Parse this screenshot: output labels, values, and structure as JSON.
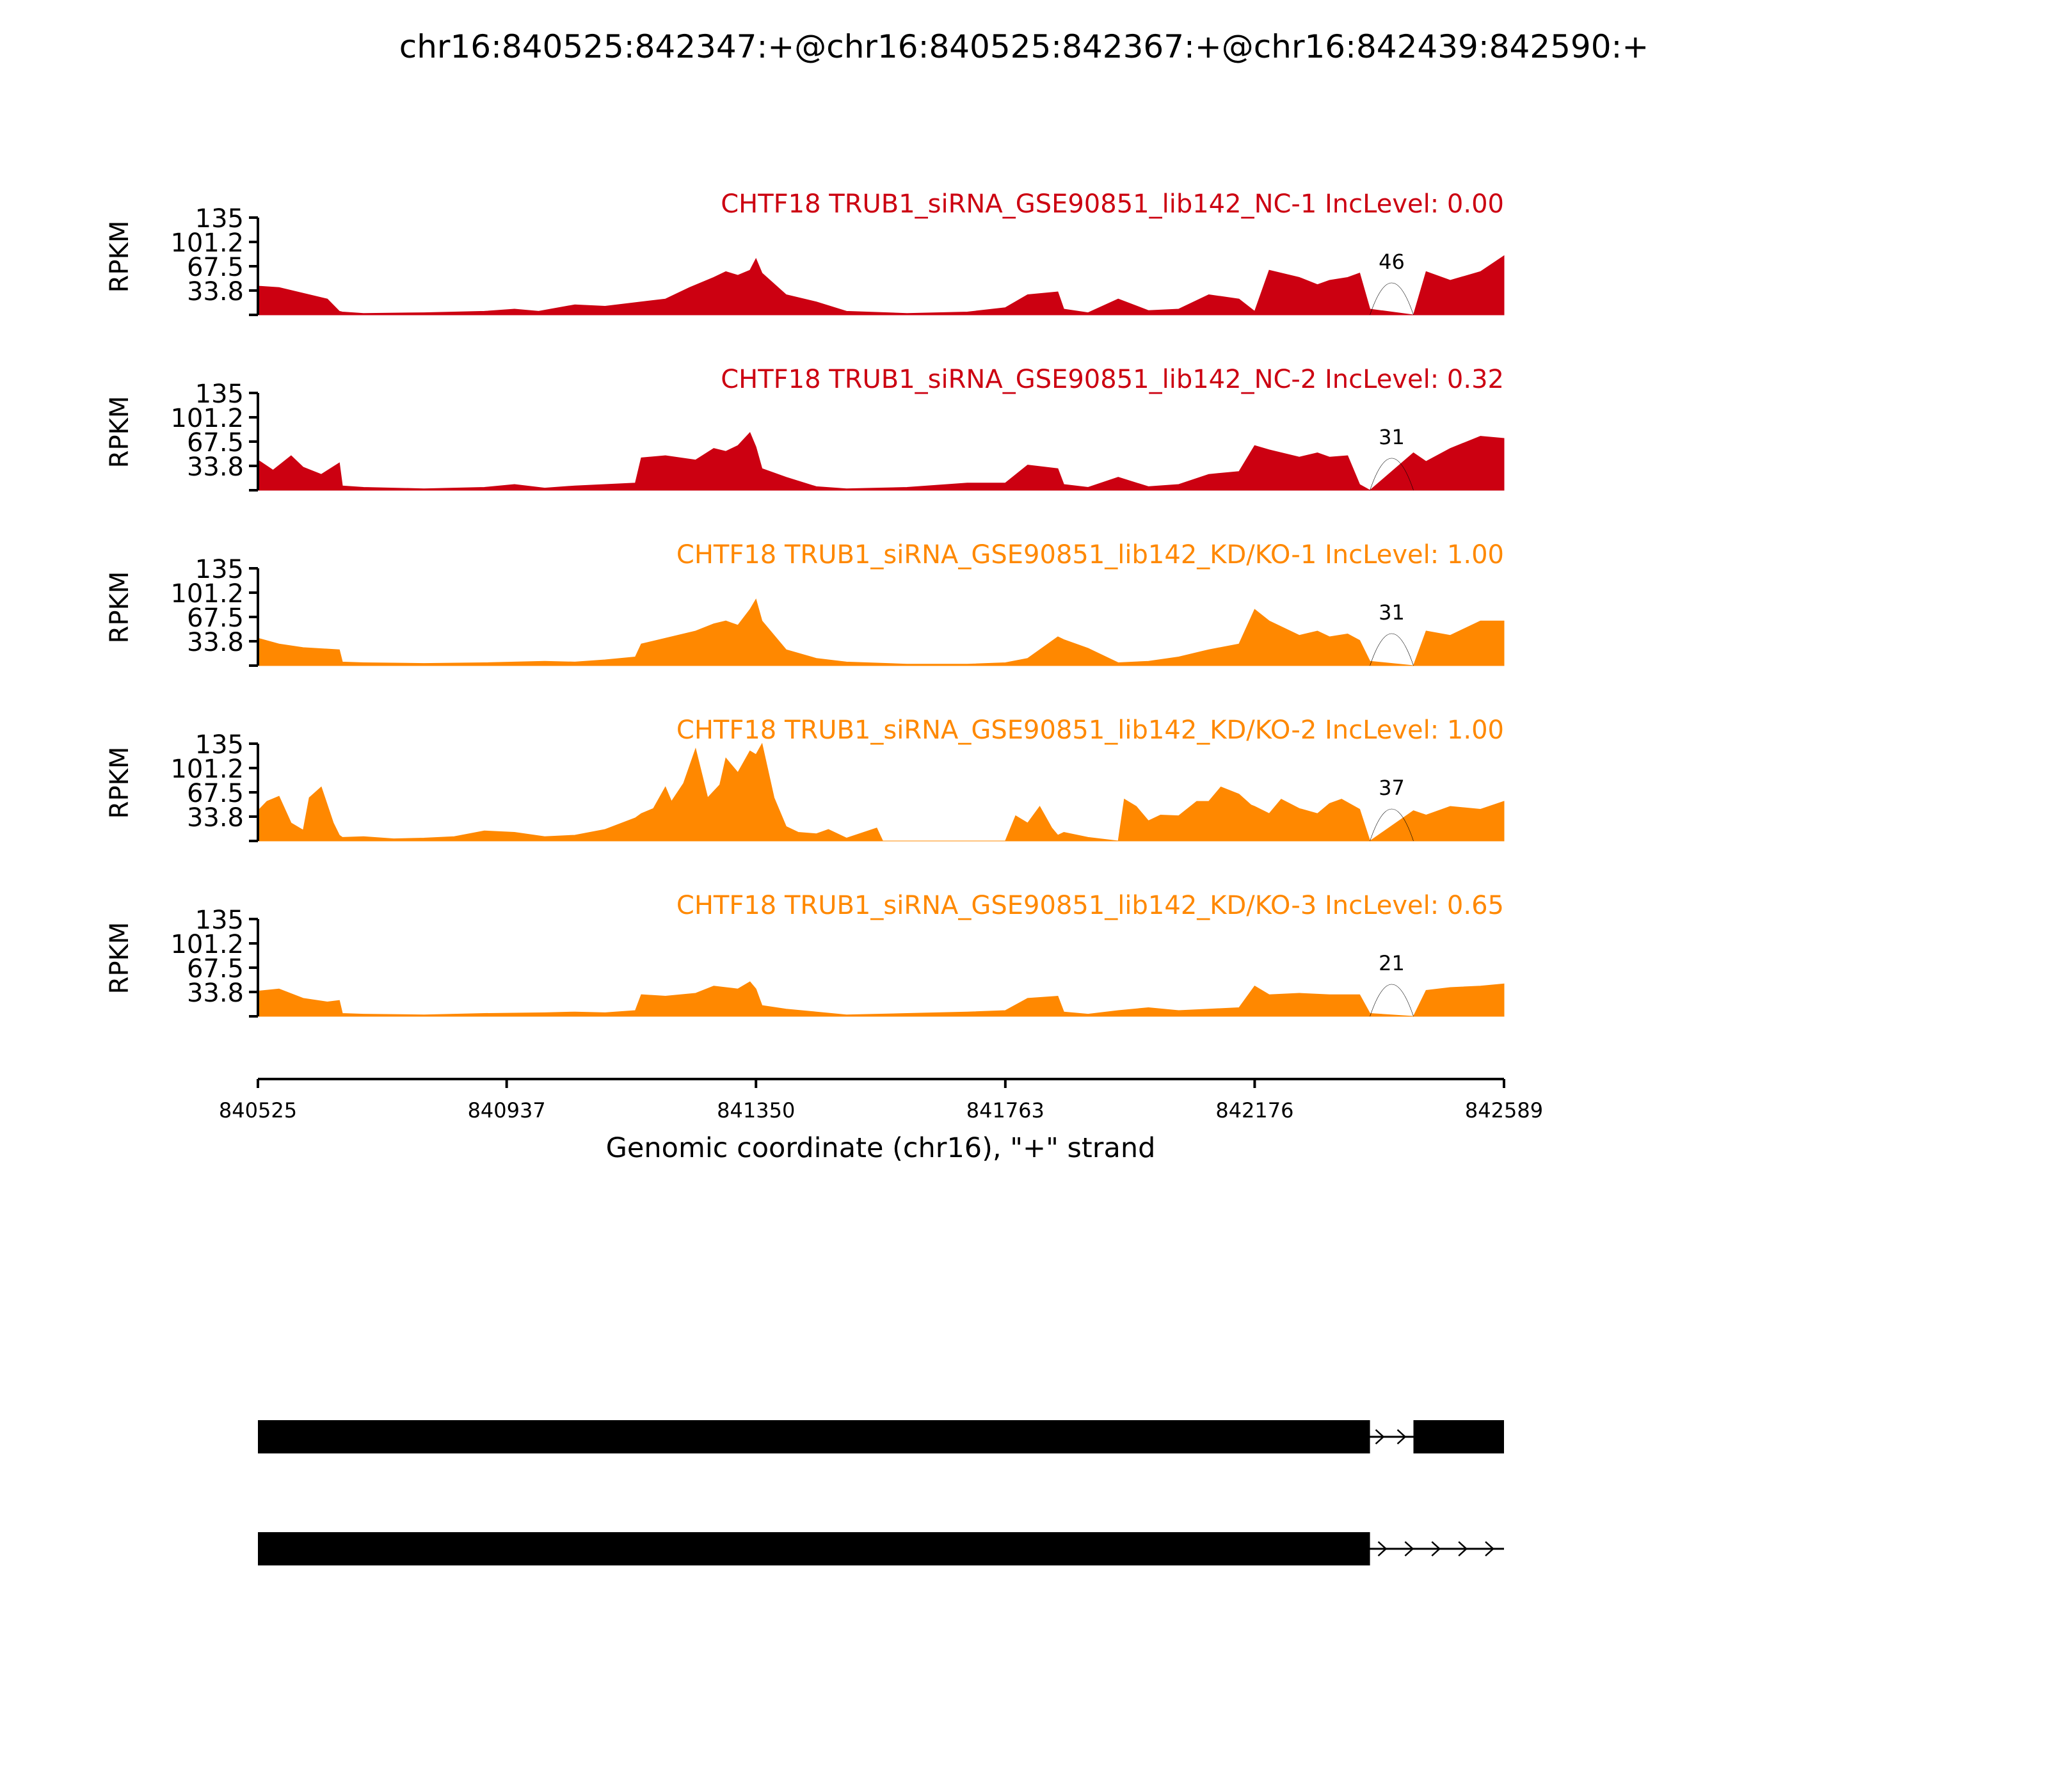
{
  "title": "chr16:840525:842347:+@chr16:840525:842367:+@chr16:842439:842590:+",
  "chart_data": {
    "type": "area",
    "xlabel": "Genomic coordinate (chr16), \"+\" strand",
    "ylabel": "RPKM",
    "xlim": [
      840525,
      842589
    ],
    "xticks": [
      840525,
      840937,
      841350,
      841763,
      842176,
      842589
    ],
    "ylim": [
      0,
      135
    ],
    "yticks": [
      33.8,
      67.5,
      101.2,
      135
    ],
    "yticklabels": [
      "33.8",
      "67.5",
      "101.2",
      "135"
    ],
    "colors": {
      "nc": "#cc0011",
      "kd": "#ff8800",
      "junction": "#000000"
    },
    "junction_start": 842367,
    "junction_end": 842439,
    "series": [
      {
        "name": "CHTF18 TRUB1_siRNA_GSE90851_lib142_NC-1 IncLevel: 0.00",
        "group": "nc",
        "junction_count": "46",
        "x": [
          840525,
          840560,
          840600,
          840640,
          840660,
          840665,
          840700,
          840800,
          840900,
          840950,
          840990,
          841050,
          841100,
          841200,
          841240,
          841280,
          841300,
          841320,
          841340,
          841350,
          841360,
          841400,
          841450,
          841500,
          841600,
          841700,
          841763,
          841800,
          841850,
          841860,
          841900,
          841950,
          842000,
          842050,
          842100,
          842150,
          842176,
          842200,
          842250,
          842280,
          842300,
          842330,
          842350,
          842367,
          842439,
          842460,
          842500,
          842550,
          842589
        ],
        "y": [
          40,
          38,
          30,
          22,
          5,
          4,
          2,
          3,
          5,
          8,
          5,
          14,
          12,
          22,
          38,
          52,
          60,
          55,
          62,
          78,
          58,
          28,
          18,
          5,
          2,
          4,
          10,
          28,
          32,
          8,
          3,
          22,
          6,
          8,
          28,
          22,
          5,
          62,
          52,
          42,
          48,
          52,
          58,
          8,
          0,
          60,
          48,
          60,
          82
        ]
      },
      {
        "name": "CHTF18 TRUB1_siRNA_GSE90851_lib142_NC-2 IncLevel: 0.32",
        "group": "nc",
        "junction_count": "31",
        "x": [
          840525,
          840550,
          840580,
          840600,
          840630,
          840660,
          840665,
          840700,
          840800,
          840900,
          840950,
          841000,
          841050,
          841100,
          841150,
          841160,
          841200,
          841250,
          841280,
          841300,
          841320,
          841340,
          841350,
          841360,
          841400,
          841450,
          841500,
          841600,
          841700,
          841763,
          841800,
          841850,
          841860,
          841900,
          841950,
          842000,
          842050,
          842100,
          842150,
          842176,
          842200,
          842250,
          842280,
          842300,
          842330,
          842350,
          842367,
          842439,
          842460,
          842500,
          842550,
          842589
        ],
        "y": [
          42,
          28,
          48,
          32,
          22,
          38,
          6,
          4,
          2,
          4,
          8,
          3,
          6,
          8,
          10,
          45,
          48,
          42,
          58,
          54,
          62,
          80,
          60,
          30,
          18,
          5,
          2,
          4,
          10,
          10,
          35,
          30,
          8,
          4,
          18,
          5,
          8,
          22,
          26,
          62,
          56,
          46,
          52,
          46,
          48,
          8,
          0,
          52,
          40,
          58,
          75,
          72
        ]
      },
      {
        "name": "CHTF18 TRUB1_siRNA_GSE90851_lib142_KD/KO-1 IncLevel: 1.00",
        "group": "kd",
        "junction_count": "31",
        "x": [
          840525,
          840560,
          840600,
          840660,
          840665,
          840700,
          840800,
          840900,
          841000,
          841050,
          841100,
          841150,
          841160,
          841200,
          841250,
          841280,
          841300,
          841320,
          841340,
          841350,
          841360,
          841400,
          841450,
          841500,
          841600,
          841700,
          841763,
          841800,
          841850,
          841860,
          841900,
          841950,
          842000,
          842050,
          842100,
          842150,
          842176,
          842200,
          842250,
          842280,
          842300,
          842330,
          842350,
          842367,
          842439,
          842460,
          842500,
          842550,
          842589
        ],
        "y": [
          38,
          30,
          25,
          22,
          5,
          4,
          3,
          4,
          6,
          5,
          8,
          12,
          30,
          38,
          48,
          58,
          62,
          56,
          78,
          92,
          62,
          22,
          10,
          5,
          2,
          2,
          4,
          10,
          40,
          36,
          24,
          4,
          6,
          12,
          22,
          30,
          78,
          62,
          42,
          48,
          40,
          44,
          35,
          6,
          0,
          48,
          42,
          62,
          62
        ]
      },
      {
        "name": "CHTF18 TRUB1_siRNA_GSE90851_lib142_KD/KO-2 IncLevel: 1.00",
        "group": "kd",
        "junction_count": "37",
        "x": [
          840525,
          840540,
          840560,
          840580,
          840600,
          840610,
          840630,
          840650,
          840660,
          840665,
          840700,
          840750,
          840800,
          840850,
          840900,
          840950,
          841000,
          841050,
          841100,
          841150,
          841160,
          841180,
          841200,
          841210,
          841230,
          841250,
          841270,
          841290,
          841300,
          841320,
          841340,
          841350,
          841360,
          841380,
          841400,
          841420,
          841450,
          841470,
          841500,
          841550,
          841560,
          841600,
          841700,
          841763,
          841780,
          841800,
          841820,
          841840,
          841850,
          841860,
          841900,
          841950,
          841960,
          841980,
          842000,
          842020,
          842050,
          842080,
          842100,
          842120,
          842150,
          842170,
          842176,
          842200,
          842220,
          842250,
          842280,
          842300,
          842320,
          842350,
          842367,
          842439,
          842460,
          842500,
          842550,
          842589
        ],
        "y": [
          42,
          55,
          62,
          25,
          15,
          60,
          75,
          25,
          8,
          5,
          6,
          3,
          4,
          6,
          14,
          12,
          6,
          8,
          16,
          32,
          38,
          45,
          75,
          55,
          80,
          128,
          60,
          78,
          115,
          95,
          125,
          120,
          135,
          60,
          20,
          12,
          10,
          16,
          4,
          18,
          0,
          0,
          0,
          0,
          35,
          25,
          48,
          18,
          8,
          12,
          5,
          0,
          58,
          48,
          28,
          36,
          35,
          55,
          55,
          75,
          65,
          50,
          48,
          38,
          58,
          45,
          38,
          52,
          58,
          44,
          0,
          42,
          36,
          48,
          44,
          55
        ]
      },
      {
        "name": "CHTF18 TRUB1_siRNA_GSE90851_lib142_KD/KO-3 IncLevel: 0.65",
        "group": "kd",
        "junction_count": "21",
        "x": [
          840525,
          840560,
          840600,
          840640,
          840660,
          840665,
          840700,
          840800,
          840900,
          841000,
          841050,
          841100,
          841150,
          841160,
          841200,
          841250,
          841280,
          841300,
          841320,
          841340,
          841350,
          841360,
          841400,
          841450,
          841500,
          841600,
          841700,
          841763,
          841800,
          841850,
          841860,
          841900,
          841950,
          842000,
          842050,
          842100,
          842150,
          842176,
          842200,
          842250,
          842300,
          842350,
          842367,
          842439,
          842460,
          842500,
          842550,
          842589
        ],
        "y": [
          35,
          38,
          25,
          20,
          22,
          4,
          3,
          2,
          4,
          5,
          6,
          5,
          8,
          30,
          28,
          32,
          42,
          40,
          38,
          48,
          38,
          15,
          10,
          6,
          2,
          4,
          6,
          8,
          25,
          28,
          6,
          3,
          8,
          12,
          8,
          10,
          12,
          42,
          30,
          32,
          30,
          30,
          4,
          0,
          36,
          40,
          42,
          45
        ]
      }
    ],
    "annotations": [
      "46",
      "31",
      "31",
      "37",
      "21"
    ],
    "isoforms": [
      {
        "exons": [
          [
            840525,
            842367
          ],
          [
            842439,
            842589
          ]
        ],
        "intron_arrow_count": 2
      },
      {
        "exons": [
          [
            840525,
            842367
          ]
        ],
        "line_end": 842589,
        "intron_arrow_count": 5
      }
    ]
  }
}
